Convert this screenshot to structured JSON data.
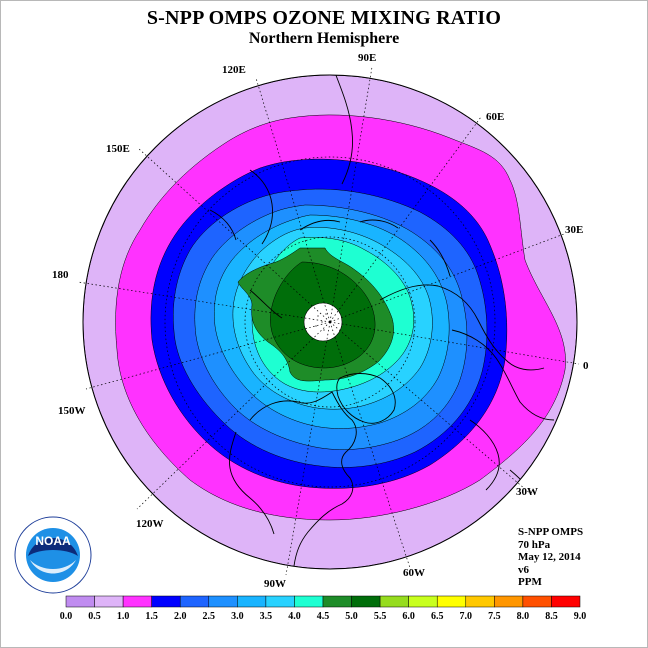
{
  "title": "S-NPP OMPS OZONE MIXING RATIO",
  "subtitle": "Northern Hemisphere",
  "longitude_labels": [
    "90E",
    "60E",
    "30E",
    "0",
    "30W",
    "60W",
    "90W",
    "120W",
    "150W",
    "180",
    "150E",
    "120E"
  ],
  "info": {
    "instrument": "S-NPP OMPS",
    "level": "70 hPa",
    "date": "May 12, 2014",
    "version": "v6",
    "units": "PPM"
  },
  "colorbar": {
    "ticks": [
      "0.0",
      "0.5",
      "1.0",
      "1.5",
      "2.0",
      "2.5",
      "3.0",
      "3.5",
      "4.0",
      "4.5",
      "5.0",
      "5.5",
      "6.0",
      "6.5",
      "7.0",
      "7.5",
      "8.0",
      "8.5",
      "9.0"
    ],
    "colors": [
      "#c08cf0",
      "#deb4f8",
      "#ff32ff",
      "#0000ff",
      "#1e64ff",
      "#1e90ff",
      "#19b4ff",
      "#28d2ff",
      "#1effd2",
      "#1e8c28",
      "#006e0a",
      "#96dc1e",
      "#c8ff1e",
      "#ffff00",
      "#ffc800",
      "#ff9600",
      "#ff5000",
      "#ff0000",
      "#8c5a3c"
    ]
  },
  "contour_colors": {
    "outer": "#deb4f8",
    "c1": "#ff32ff",
    "c2": "#0000ff",
    "c3": "#1e64ff",
    "c4": "#1e90ff",
    "c5": "#19b4ff",
    "c6": "#28d2ff",
    "c7": "#1effd2",
    "c8": "#1e8c28",
    "c9": "#006e0a"
  },
  "logo_text": "NOAA"
}
